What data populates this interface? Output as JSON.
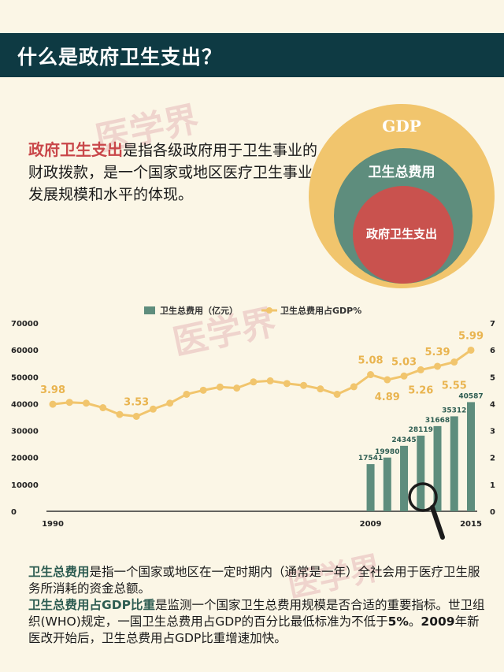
{
  "header": {
    "title": "什么是政府卫生支出？"
  },
  "watermark": "医学界",
  "intro": {
    "highlight": "政府卫生支出",
    "rest": "是指各级政府用于卫生事业的财政拨款，是一个国家或地区医疗卫生事业发展规模和水平的体现。"
  },
  "venn": {
    "gdp_label": "GDP",
    "health_label": "卫生总费用",
    "gov_label": "政府卫生支出",
    "colors": {
      "gdp": "#f1c56d",
      "health": "#5e8d7d",
      "gov": "#c9524e"
    }
  },
  "chart_data": {
    "type": "bar",
    "legend": [
      "卫生总费用（亿元）",
      "卫生总费用占GDP%"
    ],
    "colors": {
      "bar": "#5e8d7d",
      "line": "#f1c56d"
    },
    "x_tick_labels": [
      "1990",
      "2009",
      "2015"
    ],
    "x": [
      1990,
      1991,
      1992,
      1993,
      1994,
      1995,
      1996,
      1997,
      1998,
      1999,
      2000,
      2001,
      2002,
      2003,
      2004,
      2005,
      2006,
      2007,
      2008,
      2009,
      2010,
      2011,
      2012,
      2013,
      2014,
      2015
    ],
    "bar_series": {
      "name": "卫生总费用（亿元）",
      "x": [
        2009,
        2010,
        2011,
        2012,
        2013,
        2014,
        2015
      ],
      "values": [
        17541,
        19980,
        24345,
        28119,
        31668,
        35312,
        40587
      ]
    },
    "line_series": {
      "name": "卫生总费用占GDP%",
      "values": [
        3.98,
        4.05,
        4.02,
        3.85,
        3.6,
        3.53,
        3.8,
        4.02,
        4.35,
        4.5,
        4.62,
        4.58,
        4.81,
        4.85,
        4.75,
        4.68,
        4.55,
        4.35,
        4.63,
        5.08,
        4.89,
        5.03,
        5.26,
        5.39,
        5.55,
        5.99
      ]
    },
    "data_labels": [
      {
        "x": 1990,
        "text": "3.98"
      },
      {
        "x": 1995,
        "text": "3.53"
      },
      {
        "x": 2009,
        "text": "5.08"
      },
      {
        "x": 2010,
        "text": "4.89"
      },
      {
        "x": 2011,
        "text": "5.03"
      },
      {
        "x": 2012,
        "text": "5.26"
      },
      {
        "x": 2013,
        "text": "5.39"
      },
      {
        "x": 2014,
        "text": "5.55"
      },
      {
        "x": 2015,
        "text": "5.99"
      }
    ],
    "y_left": {
      "ticks": [
        0,
        10000,
        20000,
        30000,
        40000,
        50000,
        60000,
        70000
      ],
      "range": [
        0,
        70000
      ]
    },
    "y_right": {
      "ticks": [
        0,
        1,
        2,
        3,
        4,
        5,
        6,
        7
      ],
      "range": [
        0,
        7
      ]
    },
    "grid": false,
    "legend_position": "top-center"
  },
  "bottom": {
    "p1_bold": "卫生总费用",
    "p1_rest": "是指一个国家或地区在一定时期内（通常是一年）全社会用于医疗卫生服务所消耗的资金总额。",
    "p2_bold": "卫生总费用占GDP比重",
    "p2_mid": "是监测一个国家卫生总费用规模是否合适的重要指标。世卫组织(WHO)规定，一国卫生总费用占GDP的百分比最低标准为不低于",
    "p2_pct": "5%",
    "p2_after": "。",
    "p2_year": "2009",
    "p2_end": "年新医改开始后，卫生总费用占GDP比重增速加快。"
  }
}
